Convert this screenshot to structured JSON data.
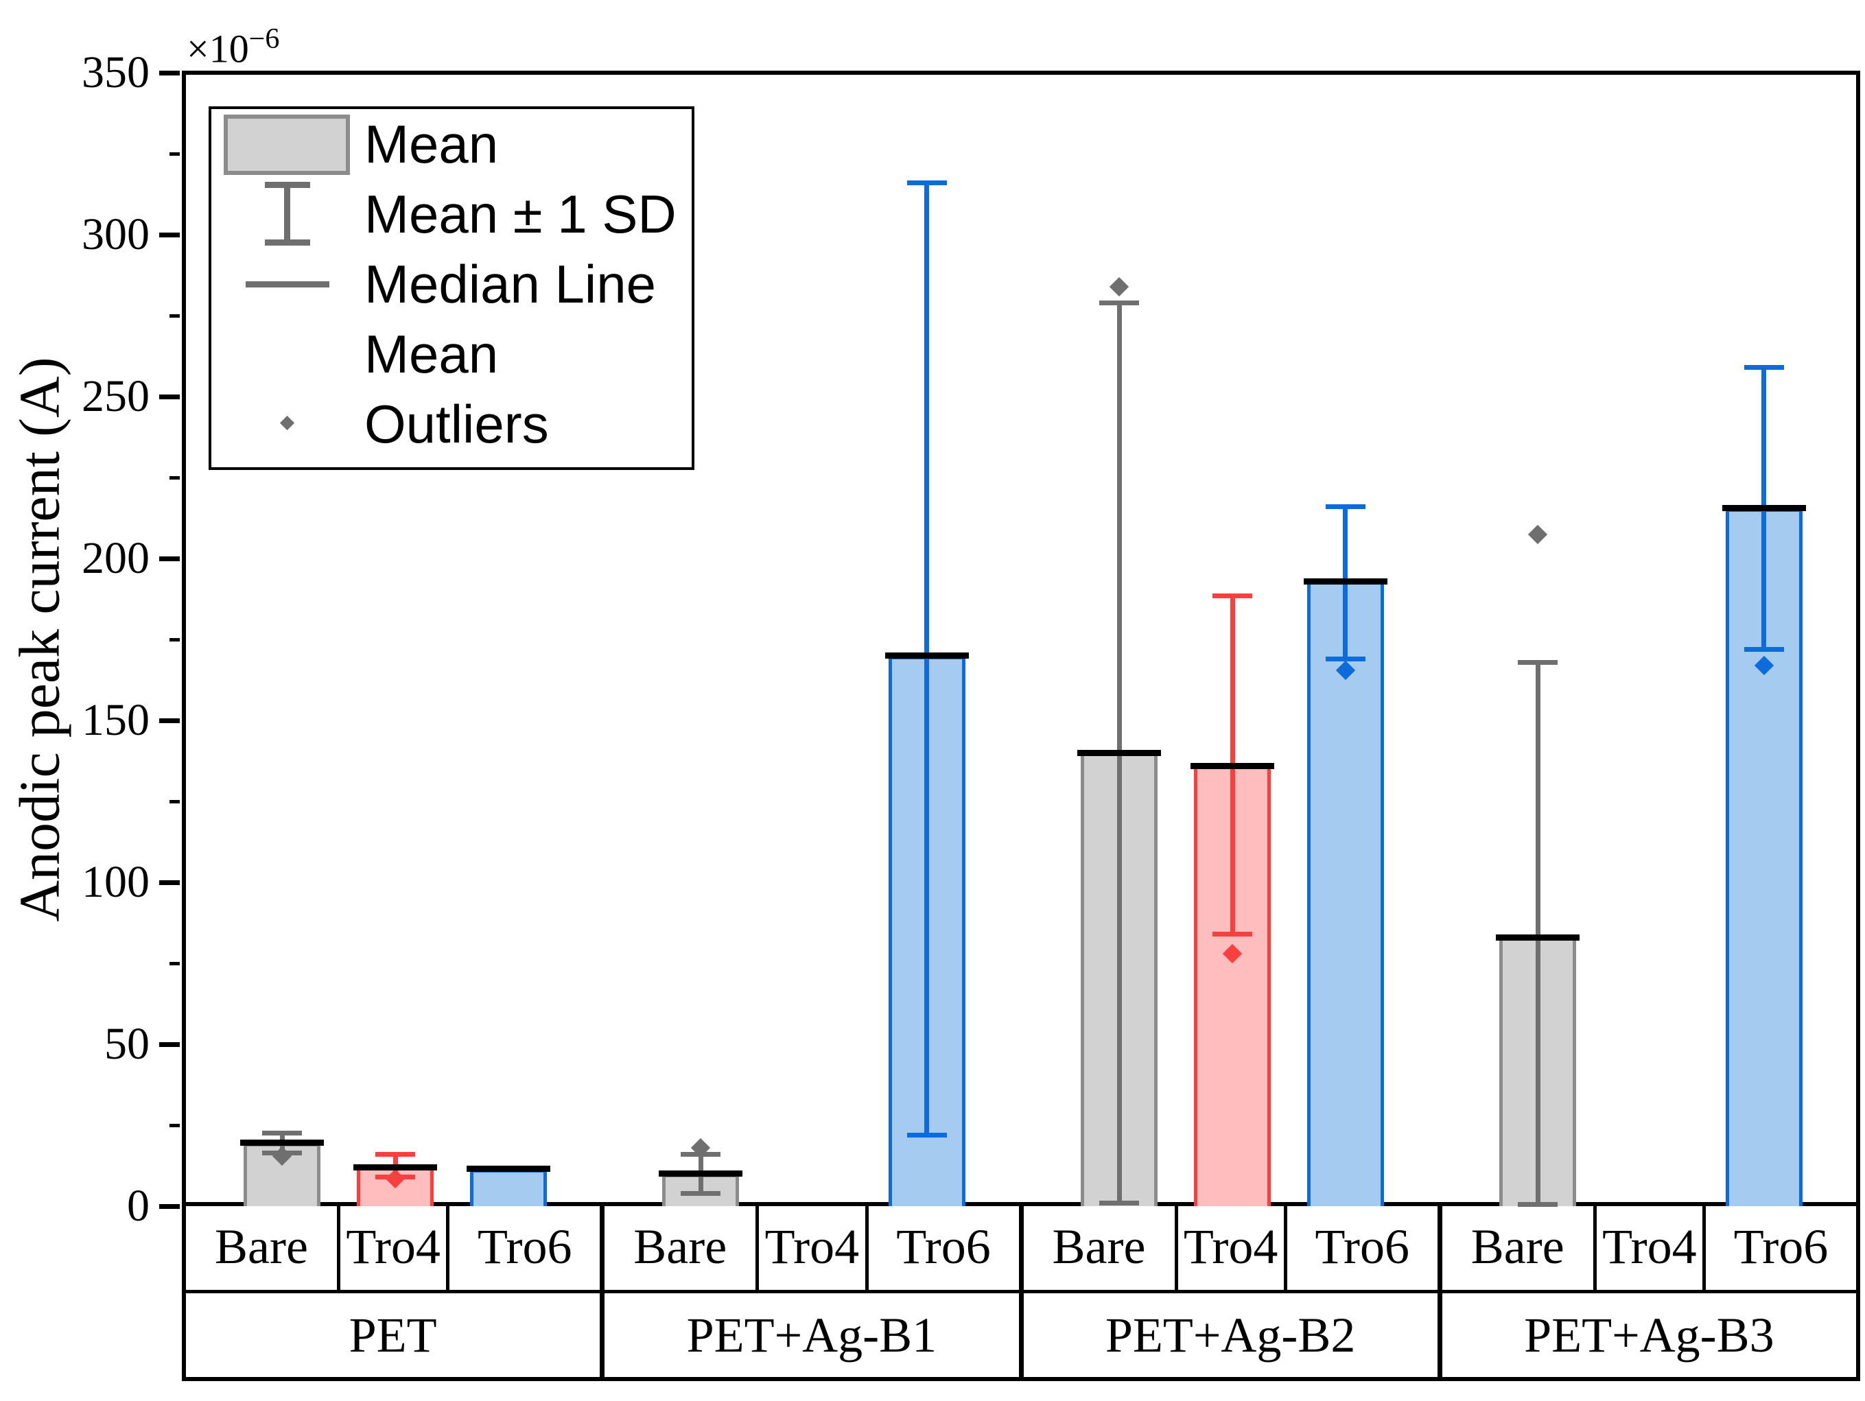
{
  "y_axis": {
    "label": "Anodic peak current (A)",
    "multiplier_base": "×10",
    "multiplier_exponent": "−6"
  },
  "legend": {
    "items": [
      {
        "symbol": "mean-box",
        "label": "Mean"
      },
      {
        "symbol": "error-bar",
        "label": "Mean ± 1 SD"
      },
      {
        "symbol": "median-line",
        "label": "Median Line"
      },
      {
        "symbol": "none",
        "label": "Mean"
      },
      {
        "symbol": "outlier-diamond",
        "label": "Outliers"
      }
    ]
  },
  "colors": {
    "gray_fill": "#D2D2D2",
    "gray_edge": "#8C8C8C",
    "gray_dark": "#6F6F6F",
    "red_fill": "#FFBDBD",
    "red_edge": "#FA3F3F",
    "blue_fill": "#A6CBF1",
    "blue_edge": "#0E6BDB",
    "median_line": "#000000"
  },
  "chart_data": {
    "type": "bar",
    "title": "",
    "xlabel": "",
    "ylabel": "Anodic peak current (A)",
    "y_unit_multiplier": "1e-6",
    "ylim": [
      0,
      350
    ],
    "y_ticks": [
      0,
      50,
      100,
      150,
      200,
      250,
      300,
      350
    ],
    "y_minor_step": 25,
    "grid": false,
    "legend_position": "top-left",
    "categories": [
      "Bare",
      "Tro4",
      "Tro6"
    ],
    "groups": [
      {
        "label": "PET",
        "bars": [
          {
            "category": "Bare",
            "color": "gray",
            "mean": 19.5,
            "median": 19.5,
            "sd_low": 16.5,
            "sd_high": 22.5,
            "outlier": 15.5
          },
          {
            "category": "Tro4",
            "color": "red",
            "mean": 12,
            "median": 12,
            "sd_low": 9,
            "sd_high": 16,
            "outlier": 8.5
          },
          {
            "category": "Tro6",
            "color": "blue",
            "mean": 11.5,
            "median": 11.5,
            "sd_low": null,
            "sd_high": null,
            "outlier": null
          }
        ]
      },
      {
        "label": "PET+Ag-B1",
        "bars": [
          {
            "category": "Bare",
            "color": "gray",
            "mean": 10,
            "median": 10,
            "sd_low": 4,
            "sd_high": 16,
            "outlier": 18
          },
          {
            "category": "Tro4",
            "color": "red",
            "mean": null,
            "median": null,
            "sd_low": null,
            "sd_high": null,
            "outlier": null
          },
          {
            "category": "Tro6",
            "color": "blue",
            "mean": 170,
            "median": 170,
            "sd_low": 22,
            "sd_high": 316,
            "outlier": null
          }
        ]
      },
      {
        "label": "PET+Ag-B2",
        "bars": [
          {
            "category": "Bare",
            "color": "gray",
            "mean": 140,
            "median": 140,
            "sd_low": 1,
            "sd_high": 279,
            "outlier": 284
          },
          {
            "category": "Tro4",
            "color": "red",
            "mean": 136,
            "median": 136,
            "sd_low": 84,
            "sd_high": 188.5,
            "outlier": 78
          },
          {
            "category": "Tro6",
            "color": "blue",
            "mean": 193,
            "median": 193,
            "sd_low": 169,
            "sd_high": 216,
            "outlier": 165.5
          }
        ]
      },
      {
        "label": "PET+Ag-B3",
        "bars": [
          {
            "category": "Bare",
            "color": "gray",
            "mean": 83,
            "median": 83,
            "sd_low": 0.5,
            "sd_high": 168,
            "outlier": 207.5
          },
          {
            "category": "Tro4",
            "color": "red",
            "mean": null,
            "median": null,
            "sd_low": null,
            "sd_high": null,
            "outlier": null
          },
          {
            "category": "Tro6",
            "color": "blue",
            "mean": 215.5,
            "median": 215.5,
            "sd_low": 172,
            "sd_high": 259,
            "outlier": 167
          }
        ]
      }
    ]
  }
}
